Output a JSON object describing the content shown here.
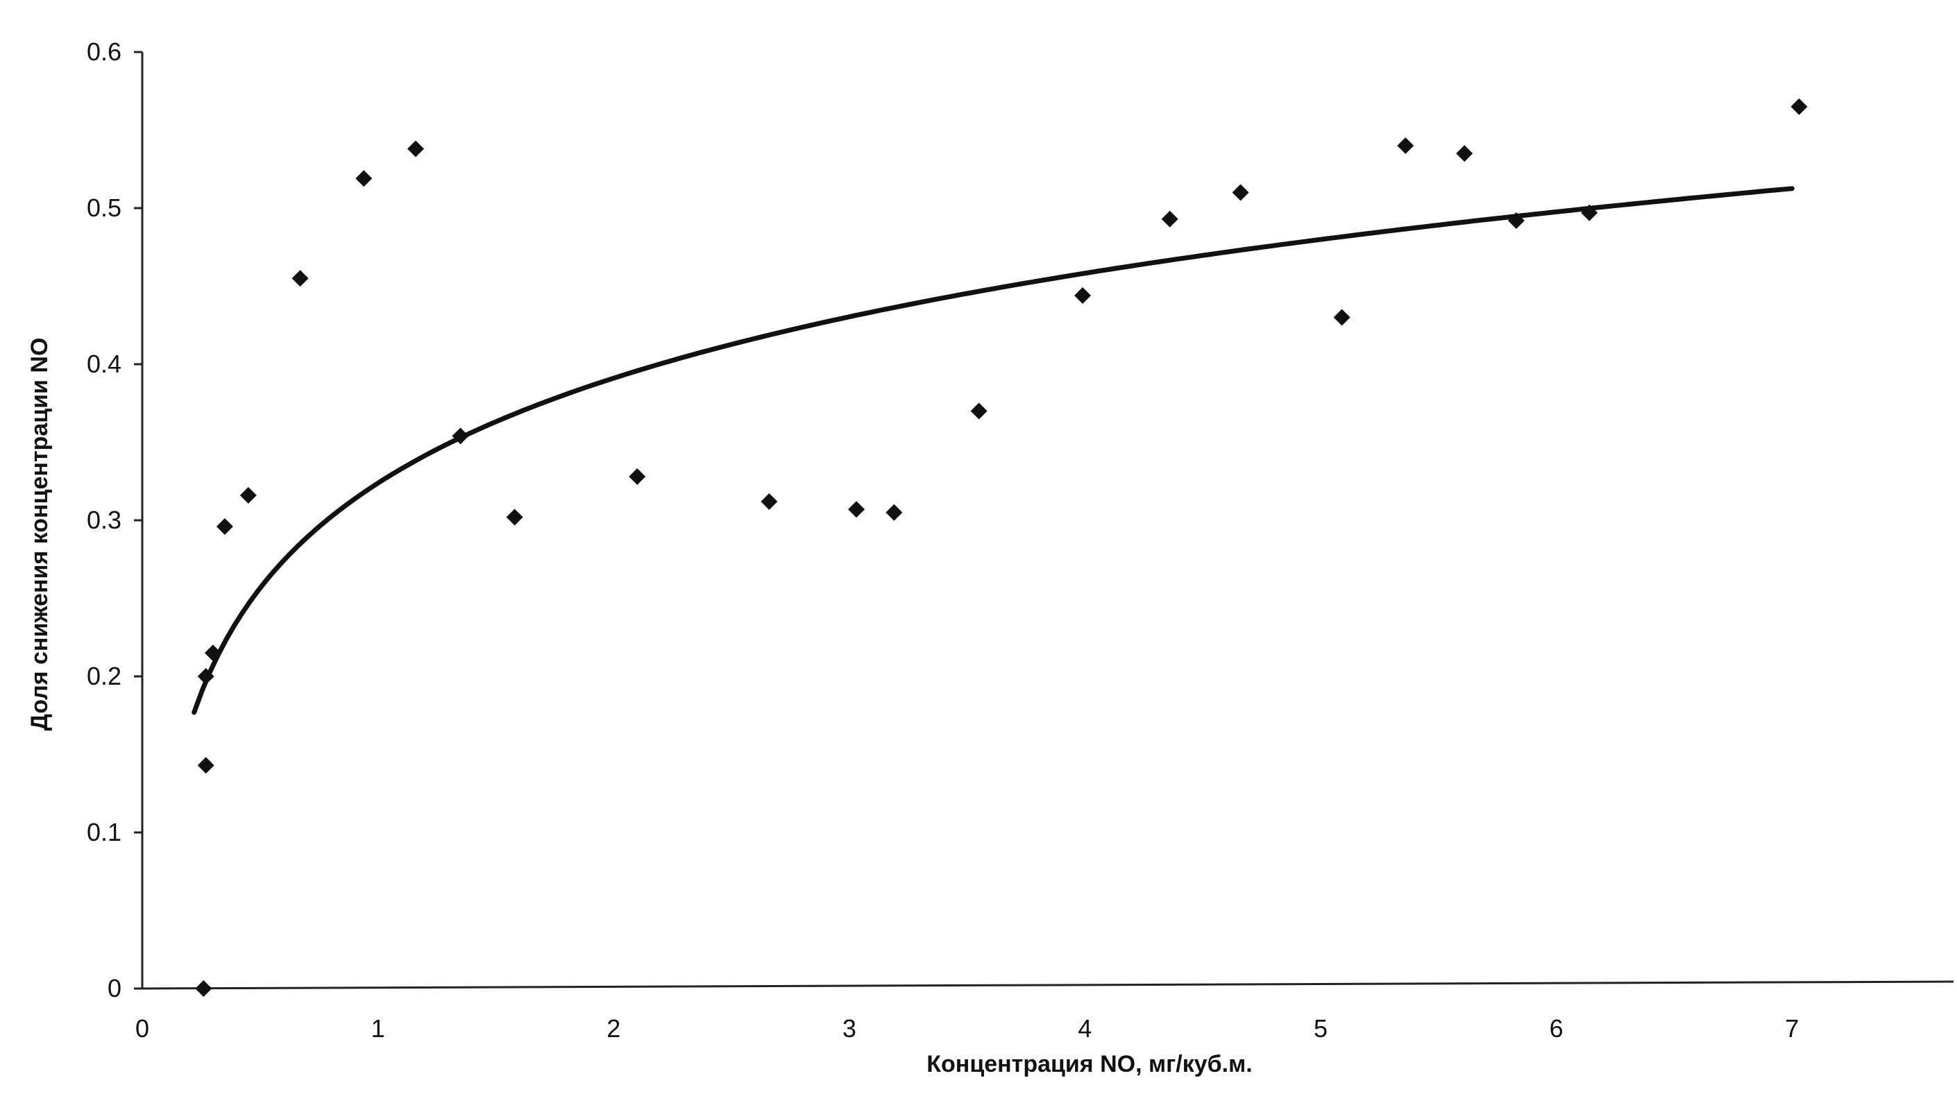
{
  "chart_data": {
    "type": "scatter",
    "xlabel": "Концентрация NO, мг/куб.м.",
    "ylabel": "Доля снижения концентрации NO",
    "xlim": [
      0,
      7.7
    ],
    "ylim": [
      0,
      0.6
    ],
    "x_ticks": [
      "0",
      "1",
      "2",
      "3",
      "4",
      "5",
      "6",
      "7"
    ],
    "y_ticks": [
      "0",
      "0.1",
      "0.2",
      "0.3",
      "0.4",
      "0.5",
      "0.6"
    ],
    "grid": false,
    "legend": "none",
    "marker": "diamond",
    "colors": {
      "points": "#111111",
      "trend": "#111111",
      "axes": "#222222"
    },
    "points": [
      {
        "x": 0.26,
        "y": 0.0
      },
      {
        "x": 0.27,
        "y": 0.143
      },
      {
        "x": 0.27,
        "y": 0.2
      },
      {
        "x": 0.3,
        "y": 0.215
      },
      {
        "x": 0.35,
        "y": 0.296
      },
      {
        "x": 0.45,
        "y": 0.316
      },
      {
        "x": 0.67,
        "y": 0.455
      },
      {
        "x": 0.94,
        "y": 0.519
      },
      {
        "x": 1.16,
        "y": 0.538
      },
      {
        "x": 1.35,
        "y": 0.354
      },
      {
        "x": 1.58,
        "y": 0.302
      },
      {
        "x": 2.1,
        "y": 0.328
      },
      {
        "x": 2.66,
        "y": 0.312
      },
      {
        "x": 3.03,
        "y": 0.307
      },
      {
        "x": 3.19,
        "y": 0.305
      },
      {
        "x": 3.55,
        "y": 0.37
      },
      {
        "x": 3.99,
        "y": 0.444
      },
      {
        "x": 4.36,
        "y": 0.493
      },
      {
        "x": 4.66,
        "y": 0.51
      },
      {
        "x": 5.09,
        "y": 0.43
      },
      {
        "x": 5.36,
        "y": 0.54
      },
      {
        "x": 5.61,
        "y": 0.535
      },
      {
        "x": 5.83,
        "y": 0.492
      },
      {
        "x": 6.14,
        "y": 0.497
      },
      {
        "x": 7.03,
        "y": 0.565
      }
    ],
    "trendline": {
      "type": "logarithmic",
      "a": 0.3238,
      "b": 0.097,
      "x_range": [
        0.22,
        7.0
      ]
    }
  }
}
